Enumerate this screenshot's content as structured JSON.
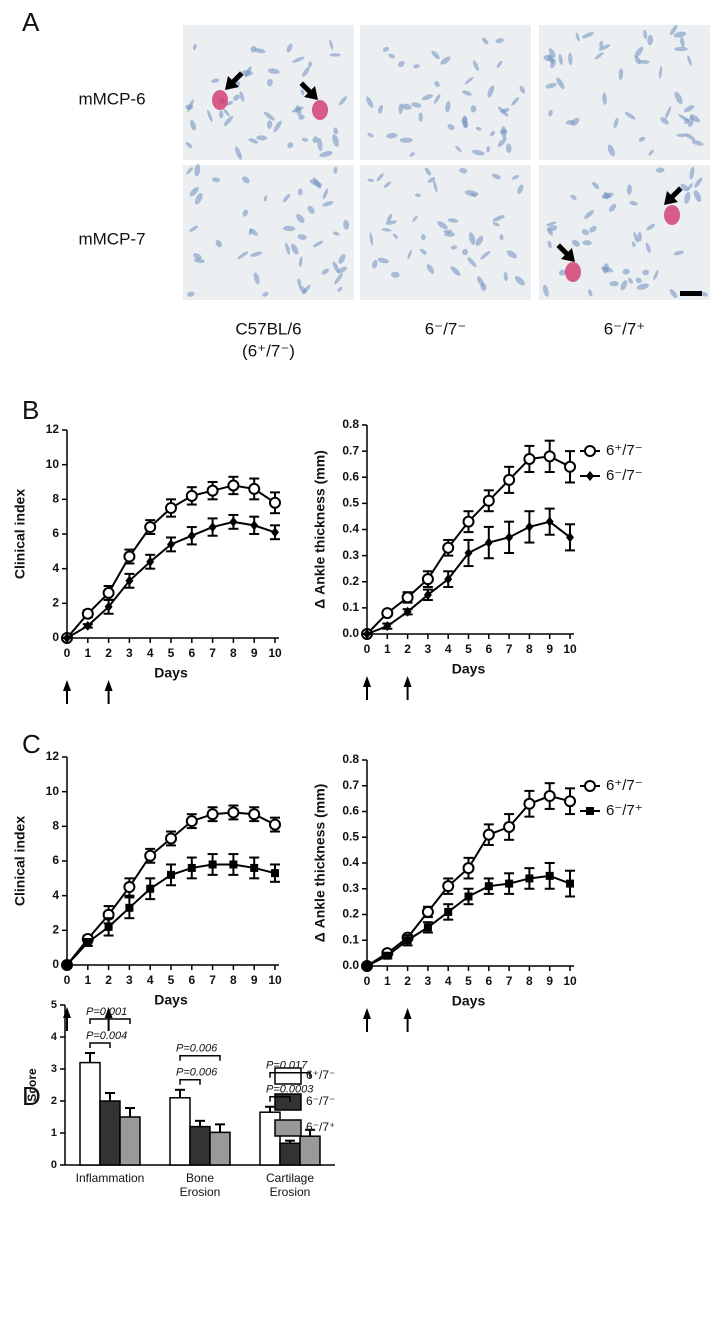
{
  "figure": {
    "panel_labels": [
      "A",
      "B",
      "C",
      "D"
    ],
    "image_rows": [
      "mMCP-6",
      "mMCP-7"
    ],
    "image_columns": [
      {
        "label": "C57BL/6",
        "sublabel": "(6⁺/7⁻)"
      },
      {
        "label": "6⁻/7⁻"
      },
      {
        "label": "6⁻/7⁺"
      }
    ]
  },
  "chart_data": [
    {
      "type": "line",
      "ylabel": "Clinical index",
      "xlabel": "Days",
      "x": [
        0,
        1,
        2,
        3,
        4,
        5,
        6,
        7,
        8,
        9,
        10
      ],
      "xlim": [
        0,
        10
      ],
      "xticks": [
        0,
        1,
        2,
        3,
        4,
        5,
        6,
        7,
        8,
        9,
        10
      ],
      "ylim": [
        0,
        12
      ],
      "yticks": [
        0,
        2,
        4,
        6,
        8,
        10,
        12
      ],
      "series": [
        {
          "color": "#000000",
          "marker": "open-circle",
          "values": [
            0,
            1.4,
            2.6,
            4.7,
            6.4,
            7.5,
            8.2,
            8.5,
            8.8,
            8.6,
            7.8
          ],
          "errors": [
            0,
            0.2,
            0.4,
            0.4,
            0.4,
            0.5,
            0.5,
            0.5,
            0.5,
            0.6,
            0.6
          ]
        },
        {
          "color": "#000000",
          "marker": "diamond",
          "values": [
            0,
            0.7,
            1.8,
            3.3,
            4.4,
            5.4,
            5.9,
            6.4,
            6.7,
            6.5,
            6.1
          ],
          "errors": [
            0,
            0.1,
            0.4,
            0.4,
            0.4,
            0.4,
            0.5,
            0.5,
            0.4,
            0.5,
            0.4
          ]
        }
      ]
    },
    {
      "type": "line",
      "ylabel": "Δ Ankle thickness (mm)",
      "xlabel": "Days",
      "legend": true,
      "x": [
        0,
        1,
        2,
        3,
        4,
        5,
        6,
        7,
        8,
        9,
        10
      ],
      "xlim": [
        0,
        10
      ],
      "xticks": [
        0,
        1,
        2,
        3,
        4,
        5,
        6,
        7,
        8,
        9,
        10
      ],
      "ylim": [
        0,
        0.8
      ],
      "yticks": [
        {
          "value": 0,
          "label": "0.0"
        },
        0.1,
        0.2,
        0.3,
        0.4,
        0.5,
        0.6,
        0.7,
        0.8
      ],
      "series": [
        {
          "name": "6⁺/7⁻",
          "color": "#000000",
          "marker": "open-circle",
          "values": [
            0,
            0.08,
            0.14,
            0.21,
            0.33,
            0.43,
            0.51,
            0.59,
            0.67,
            0.68,
            0.64
          ],
          "errors": [
            0,
            0.01,
            0.02,
            0.03,
            0.03,
            0.04,
            0.04,
            0.05,
            0.05,
            0.06,
            0.06
          ]
        },
        {
          "name": "6⁻/7⁻",
          "color": "#000000",
          "marker": "diamond",
          "values": [
            0,
            0.03,
            0.085,
            0.15,
            0.21,
            0.31,
            0.35,
            0.37,
            0.41,
            0.43,
            0.37
          ],
          "errors": [
            0,
            0.01,
            0.01,
            0.02,
            0.03,
            0.05,
            0.06,
            0.06,
            0.06,
            0.05,
            0.05
          ]
        }
      ]
    },
    {
      "type": "line",
      "ylabel": "Clinical index",
      "xlabel": "Days",
      "x": [
        0,
        1,
        2,
        3,
        4,
        5,
        6,
        7,
        8,
        9,
        10
      ],
      "xlim": [
        0,
        10
      ],
      "xticks": [
        0,
        1,
        2,
        3,
        4,
        5,
        6,
        7,
        8,
        9,
        10
      ],
      "ylim": [
        0,
        12
      ],
      "yticks": [
        0,
        2,
        4,
        6,
        8,
        10,
        12
      ],
      "series": [
        {
          "color": "#000000",
          "marker": "open-circle",
          "values": [
            0,
            1.5,
            2.9,
            4.5,
            6.3,
            7.3,
            8.3,
            8.7,
            8.8,
            8.7,
            8.1
          ],
          "errors": [
            0,
            0.2,
            0.5,
            0.5,
            0.4,
            0.4,
            0.4,
            0.4,
            0.4,
            0.4,
            0.4
          ]
        },
        {
          "color": "#000000",
          "marker": "square",
          "values": [
            0,
            1.3,
            2.2,
            3.3,
            4.4,
            5.2,
            5.6,
            5.8,
            5.8,
            5.6,
            5.3
          ],
          "errors": [
            0,
            0.2,
            0.5,
            0.6,
            0.6,
            0.6,
            0.6,
            0.6,
            0.6,
            0.6,
            0.5
          ]
        }
      ]
    },
    {
      "type": "line",
      "ylabel": "Δ Ankle thickness (mm)",
      "xlabel": "Days",
      "legend": true,
      "x": [
        0,
        1,
        2,
        3,
        4,
        5,
        6,
        7,
        8,
        9,
        10
      ],
      "xlim": [
        0,
        10
      ],
      "xticks": [
        0,
        1,
        2,
        3,
        4,
        5,
        6,
        7,
        8,
        9,
        10
      ],
      "ylim": [
        0,
        0.8
      ],
      "yticks": [
        {
          "value": 0,
          "label": "0.0"
        },
        0.1,
        0.2,
        0.3,
        0.4,
        0.5,
        0.6,
        0.7,
        0.8
      ],
      "series": [
        {
          "name": "6⁺/7⁻",
          "color": "#000000",
          "marker": "open-circle",
          "values": [
            0,
            0.05,
            0.11,
            0.21,
            0.31,
            0.38,
            0.51,
            0.54,
            0.63,
            0.66,
            0.64
          ],
          "errors": [
            0,
            0.01,
            0.01,
            0.02,
            0.03,
            0.04,
            0.04,
            0.05,
            0.05,
            0.05,
            0.05
          ]
        },
        {
          "name": "6⁻/7⁺",
          "color": "#000000",
          "marker": "square",
          "values": [
            0,
            0.04,
            0.1,
            0.15,
            0.21,
            0.27,
            0.31,
            0.32,
            0.34,
            0.35,
            0.32
          ],
          "errors": [
            0,
            0.01,
            0.02,
            0.02,
            0.03,
            0.03,
            0.03,
            0.04,
            0.04,
            0.05,
            0.05
          ]
        }
      ]
    },
    {
      "type": "bar",
      "ylabel": "Score",
      "categories": [
        "Inflammation",
        "Bone Erosion",
        "Cartilage Erosion"
      ],
      "ylim": [
        0,
        5
      ],
      "yticks": [
        0,
        1,
        2,
        3,
        4,
        5
      ],
      "series": [
        {
          "name": "6⁺/7⁻",
          "color": "#ffffff",
          "values": [
            3.2,
            2.1,
            1.65
          ],
          "errors": [
            0.3,
            0.25,
            0.17
          ]
        },
        {
          "name": "6⁻/7⁻",
          "color": "#333333",
          "values": [
            2.0,
            1.2,
            0.68
          ],
          "errors": [
            0.25,
            0.18,
            0.08
          ]
        },
        {
          "name": "6⁻/7⁺",
          "color": "#999999",
          "values": [
            1.5,
            1.02,
            0.9
          ],
          "errors": [
            0.28,
            0.25,
            0.2
          ]
        }
      ],
      "annotations": [
        {
          "text": "P=0.001",
          "category": 0,
          "from": 0,
          "to": 2
        },
        {
          "text": "P=0.004",
          "category": 0,
          "from": 0,
          "to": 1
        },
        {
          "text": "P=0.006",
          "category": 1,
          "from": 0,
          "to": 2
        },
        {
          "text": "P=0.006",
          "category": 1,
          "from": 0,
          "to": 1
        },
        {
          "text": "P=0.017",
          "category": 2,
          "from": 0,
          "to": 2
        },
        {
          "text": "P=0.0003",
          "category": 2,
          "from": 0,
          "to": 1
        }
      ]
    }
  ]
}
